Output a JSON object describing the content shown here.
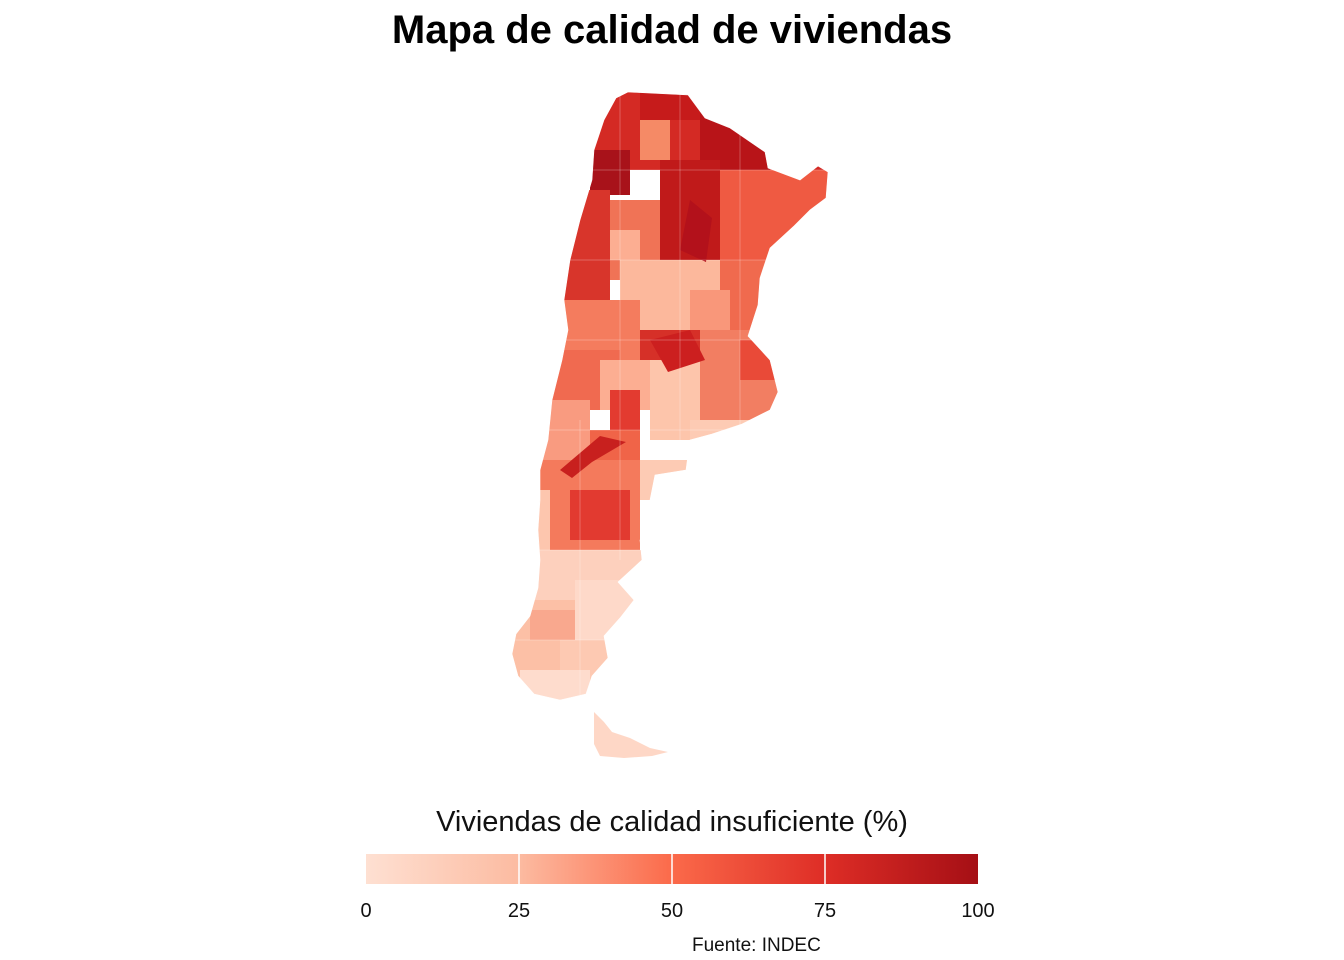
{
  "title": "Mapa de calidad de viviendas",
  "legend": {
    "title": "Viviendas de calidad insuficiente (%)",
    "ticks": [
      "0",
      "25",
      "50",
      "75",
      "100"
    ],
    "tick_values": [
      0,
      25,
      50,
      75,
      100
    ],
    "range": [
      0,
      100
    ],
    "color_low": "#fee0d2",
    "color_high": "#a50f15"
  },
  "caption": "Fuente: INDEC",
  "map": {
    "region": "Argentina",
    "fill_variable": "Viviendas de calidad insuficiente (%)",
    "color_scale": "Reds",
    "colors": [
      "#fee0d2",
      "#fcbba1",
      "#fc9272",
      "#fb6a4a",
      "#ef3b2c",
      "#cb181d",
      "#a50f15"
    ]
  }
}
